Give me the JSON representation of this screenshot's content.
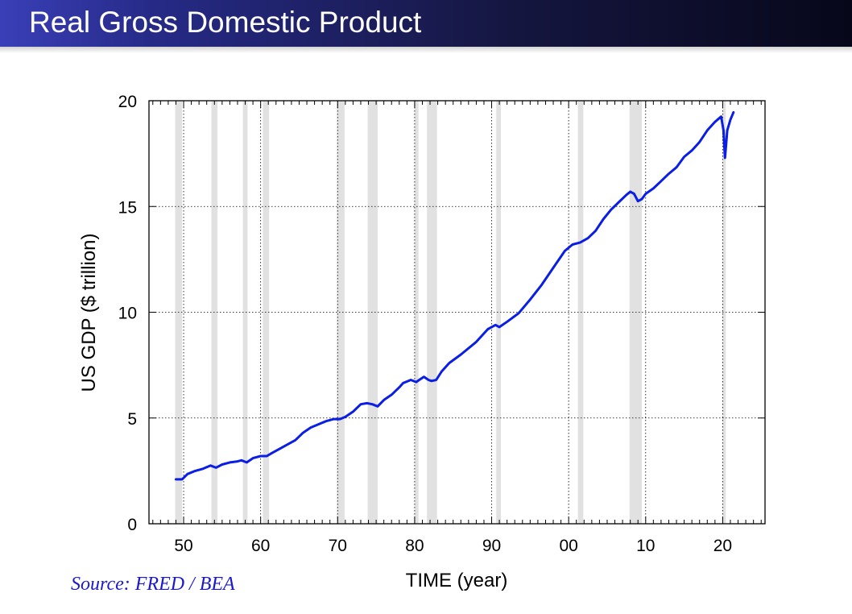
{
  "slide": {
    "title": "Real Gross Domestic Product",
    "source": "Source: FRED / BEA"
  },
  "colors": {
    "series": "#0a1ee6",
    "recession": "#e1e1e1",
    "grid": "#000000",
    "title_bar_start": "#3a3fb8",
    "title_bar_end": "#07071a",
    "source_text": "#1a1acc"
  },
  "chart_data": {
    "type": "line",
    "title": "",
    "xlabel": "TIME (year)",
    "ylabel": "US GDP ($ trillion)",
    "xlim": [
      1945.5,
      2025.5
    ],
    "ylim": [
      0,
      20
    ],
    "xticks": [
      1950,
      1960,
      1970,
      1980,
      1990,
      2000,
      2010,
      2020
    ],
    "xtick_labels": [
      "50",
      "60",
      "70",
      "80",
      "90",
      "00",
      "10",
      "20"
    ],
    "yticks": [
      0,
      5,
      10,
      15,
      20
    ],
    "ytick_labels": [
      "0",
      "5",
      "10",
      "15",
      "20"
    ],
    "grid": true,
    "legend": "none",
    "recessions": [
      [
        1948.9,
        1949.8
      ],
      [
        1953.6,
        1954.4
      ],
      [
        1957.7,
        1958.3
      ],
      [
        1960.3,
        1961.1
      ],
      [
        1969.9,
        1970.9
      ],
      [
        1973.9,
        1975.2
      ],
      [
        1980.0,
        1980.5
      ],
      [
        1981.6,
        1982.9
      ],
      [
        1990.6,
        1991.2
      ],
      [
        2001.2,
        2001.9
      ],
      [
        2007.9,
        2009.5
      ],
      [
        2020.0,
        2020.4
      ]
    ],
    "series": [
      {
        "x": [
          1949.0,
          1949.8,
          1950.5,
          1951.5,
          1952.5,
          1953.5,
          1954.2,
          1955.0,
          1956.0,
          1957.0,
          1957.5,
          1958.2,
          1959.0,
          1960.0,
          1960.8,
          1961.5,
          1962.5,
          1963.5,
          1964.5,
          1965.5,
          1966.5,
          1967.5,
          1968.5,
          1969.5,
          1970.3,
          1971.0,
          1972.0,
          1973.0,
          1973.8,
          1974.5,
          1975.2,
          1976.0,
          1977.0,
          1978.0,
          1978.5,
          1979.5,
          1980.2,
          1980.6,
          1981.2,
          1981.8,
          1982.2,
          1982.8,
          1983.5,
          1984.5,
          1986.0,
          1988.0,
          1989.5,
          1990.5,
          1991.0,
          1992.0,
          1993.5,
          1995.0,
          1996.5,
          1998.0,
          1999.5,
          2000.5,
          2001.5,
          2002.5,
          2003.5,
          2004.5,
          2005.5,
          2006.5,
          2007.5,
          2008.0,
          2008.5,
          2009.0,
          2009.5,
          2010.0,
          2011.0,
          2012.0,
          2013.0,
          2014.0,
          2015.0,
          2016.0,
          2017.0,
          2018.0,
          2019.0,
          2019.8,
          2020.1,
          2020.3,
          2020.6,
          2021.0,
          2021.4
        ],
        "y": [
          2.1,
          2.1,
          2.35,
          2.5,
          2.6,
          2.75,
          2.65,
          2.8,
          2.9,
          2.95,
          3.0,
          2.9,
          3.1,
          3.2,
          3.2,
          3.35,
          3.55,
          3.75,
          3.95,
          4.3,
          4.55,
          4.7,
          4.85,
          4.95,
          4.95,
          5.05,
          5.3,
          5.65,
          5.7,
          5.65,
          5.55,
          5.85,
          6.1,
          6.45,
          6.65,
          6.8,
          6.7,
          6.8,
          6.95,
          6.8,
          6.75,
          6.8,
          7.2,
          7.6,
          8.0,
          8.6,
          9.2,
          9.4,
          9.3,
          9.55,
          9.95,
          10.6,
          11.3,
          12.1,
          12.9,
          13.2,
          13.3,
          13.5,
          13.85,
          14.4,
          14.85,
          15.2,
          15.55,
          15.7,
          15.6,
          15.25,
          15.35,
          15.6,
          15.85,
          16.2,
          16.55,
          16.85,
          17.35,
          17.65,
          18.05,
          18.6,
          19.0,
          19.25,
          18.6,
          17.3,
          18.6,
          19.1,
          19.45
        ]
      }
    ]
  }
}
